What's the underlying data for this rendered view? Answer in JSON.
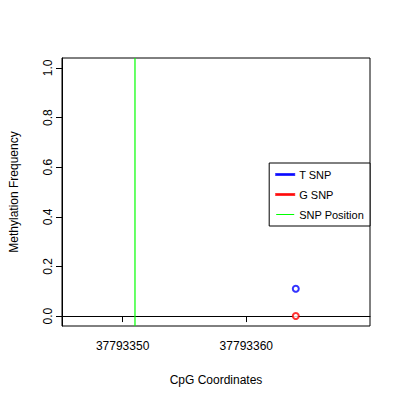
{
  "chart_data": {
    "type": "scatter",
    "x_label": "CpG Coordinates",
    "y_label": "Methylation Frequency",
    "xlim": [
      37793345.1,
      37793370
    ],
    "xticks": [
      37793350,
      37793360
    ],
    "ylim": [
      -0.04,
      1.04
    ],
    "yticks": [
      {
        "value": 0,
        "label": "0.0"
      },
      0.2,
      0.4,
      0.6,
      0.8,
      {
        "value": 1,
        "label": "1.0"
      }
    ],
    "grid": false,
    "legend": "right",
    "series": [
      {
        "name": "T SNP",
        "color": "#0000ff",
        "marker": "circle",
        "x": [
          37793364
        ],
        "values": [
          0.11
        ]
      },
      {
        "name": "G SNP",
        "color": "#ff0000",
        "marker": "circle",
        "x": [
          37793364
        ],
        "values": [
          0.0
        ]
      },
      {
        "name": "SNP Position",
        "color": "#00ff00",
        "type": "vline",
        "x": [
          37793351
        ]
      }
    ]
  }
}
